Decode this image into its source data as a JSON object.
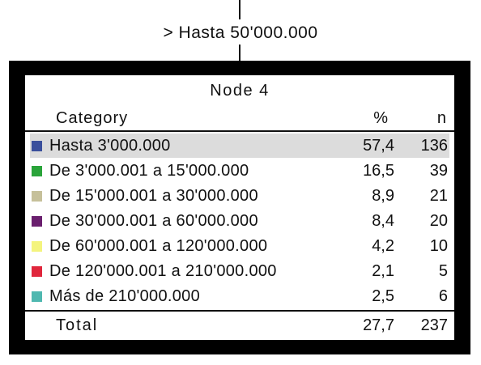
{
  "edge_label": "> Hasta 50'000.000",
  "node": {
    "title": "Node 4",
    "header": {
      "category": "Category",
      "percent": "%",
      "n": "n"
    },
    "rows": [
      {
        "label": "Hasta 3'000.000",
        "percent": "57,4",
        "n": "136",
        "color": "#3a4f9c",
        "highlighted": true
      },
      {
        "label": "De 3'000.001 a 15'000.000",
        "percent": "16,5",
        "n": "39",
        "color": "#2aa43a"
      },
      {
        "label": "De 15'000.001 a 30'000.000",
        "percent": "8,9",
        "n": "21",
        "color": "#c6c09a"
      },
      {
        "label": "De 30'000.001 a 60'000.000",
        "percent": "8,4",
        "n": "20",
        "color": "#6a1f6e"
      },
      {
        "label": "De 60'000.001 a 120'000.000",
        "percent": "4,2",
        "n": "10",
        "color": "#f4f47e"
      },
      {
        "label": "De 120'000.001 a 210'000.000",
        "percent": "2,1",
        "n": "5",
        "color": "#e0263c"
      },
      {
        "label": "Más de 210'000.000",
        "percent": "2,5",
        "n": "6",
        "color": "#4fb8b0"
      }
    ],
    "total": {
      "label": "Total",
      "percent": "27,7",
      "n": "237"
    }
  }
}
